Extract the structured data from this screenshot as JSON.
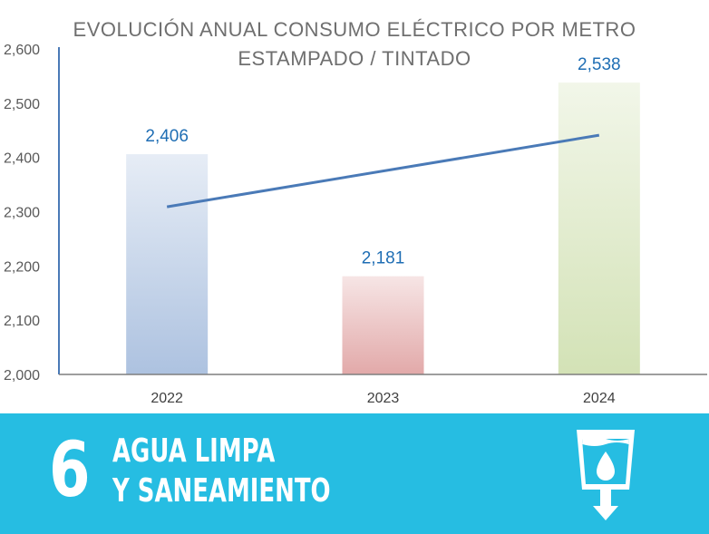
{
  "chart_data": {
    "type": "bar",
    "title_lines": [
      "EVOLUCIÓN  ANUAL  CONSUMO  ELÉCTRICO  POR METRO",
      "ESTAMPADO  / TINTADO"
    ],
    "categories": [
      "2022",
      "2023",
      "2024"
    ],
    "values": [
      2406,
      2181,
      2538
    ],
    "data_labels": [
      "2,406",
      "2,181",
      "2,538"
    ],
    "bar_colors": [
      "#adc2e0",
      "#e2a9a9",
      "#d3e2b6"
    ],
    "trendline": {
      "type": "linear",
      "color": "#4a7ab7"
    },
    "ylim": [
      2000,
      2600
    ],
    "yticks": [
      2000,
      2100,
      2200,
      2300,
      2400,
      2500,
      2600
    ],
    "ytick_labels": [
      "2,000",
      "2,100",
      "2,200",
      "2,300",
      "2,400",
      "2,500",
      "2,600"
    ],
    "label_color": "#1f6eb4",
    "axis_color": "#4a7ab7",
    "grid": false,
    "legend": "none"
  },
  "banner": {
    "number": "6",
    "line1": "AGUA LIMPA",
    "line2": "Y SANEAMIENTO",
    "icon": "water-drop-cup-icon",
    "background": "#26bde2"
  }
}
